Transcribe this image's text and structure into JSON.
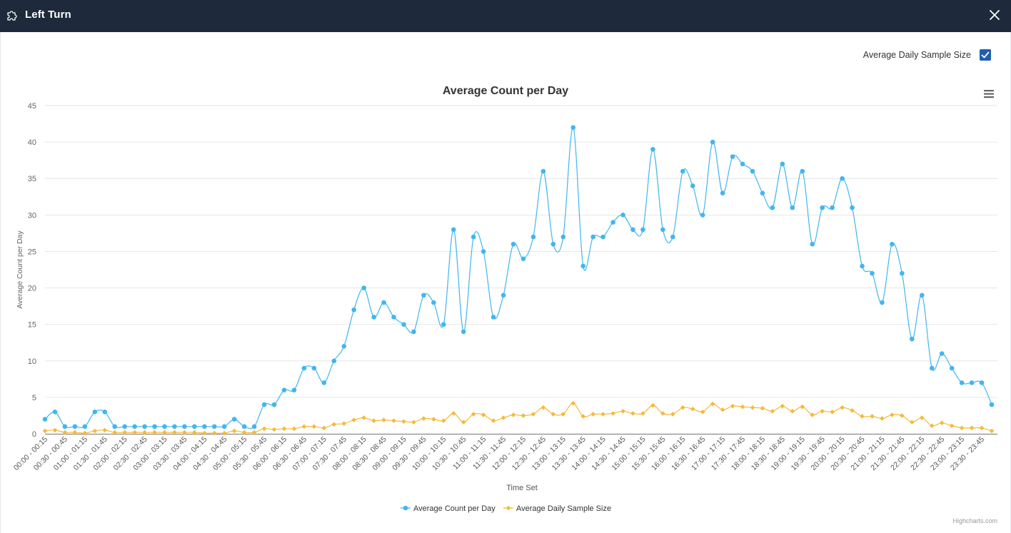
{
  "window": {
    "title": "Left Turn",
    "icon": "puzzle-icon",
    "close_icon": "close-icon"
  },
  "toggle": {
    "label": "Average Daily Sample Size",
    "checked": true
  },
  "credits": "Highcharts.com",
  "menu_icon": "hamburger-menu-icon",
  "colors": {
    "header": "#1e2a3b",
    "series1": "#41b6f0",
    "series2": "#f6b93b",
    "checkbox": "#1f5fb2"
  },
  "chart_data": {
    "type": "line",
    "title": "Average Count per Day",
    "xlabel": "Time Set",
    "ylabel": "Average Count per Day",
    "ylim": [
      0,
      45
    ],
    "yticks": [
      0,
      5,
      10,
      15,
      20,
      25,
      30,
      35,
      40,
      45
    ],
    "grid": true,
    "legend_position": "bottom-center",
    "tick_labels": [
      "00:00 - 00:15",
      "00:30 - 00:45",
      "01:00 - 01:15",
      "01:30 - 01:45",
      "02:00 - 02:15",
      "02:30 - 02:45",
      "03:00 - 03:15",
      "03:30 - 03:45",
      "04:00 - 04:15",
      "04:30 - 04:45",
      "05:00 - 05:15",
      "05:30 - 05:45",
      "06:00 - 06:15",
      "06:30 - 06:45",
      "07:00 - 07:15",
      "07:30 - 07:45",
      "08:00 - 08:15",
      "08:30 - 08:45",
      "09:00 - 09:15",
      "09:30 - 09:45",
      "10:00 - 10:15",
      "10:30 - 10:45",
      "11:00 - 11:15",
      "11:30 - 11:45",
      "12:00 - 12:15",
      "12:30 - 12:45",
      "13:00 - 13:15",
      "13:30 - 13:45",
      "14:00 - 14:15",
      "14:30 - 14:45",
      "15:00 - 15:15",
      "15:30 - 15:45",
      "16:00 - 16:15",
      "16:30 - 16:45",
      "17:00 - 17:15",
      "17:30 - 17:45",
      "18:00 - 18:15",
      "18:30 - 18:45",
      "19:00 - 19:15",
      "19:30 - 19:45",
      "20:00 - 20:15",
      "20:30 - 20:45",
      "21:00 - 21:15",
      "21:30 - 21:45",
      "22:00 - 22:15",
      "22:30 - 22:45",
      "23:00 - 23:15",
      "23:30 - 23:45"
    ],
    "series": [
      {
        "name": "Average Count per Day",
        "color": "#41b6f0",
        "marker": "circle",
        "values": [
          2,
          3,
          1,
          1,
          1,
          3,
          3,
          1,
          1,
          1,
          1,
          1,
          1,
          1,
          1,
          1,
          1,
          1,
          1,
          2,
          1,
          1,
          4,
          4,
          6,
          6,
          9,
          9,
          7,
          10,
          12,
          17,
          20,
          16,
          18,
          16,
          15,
          14,
          19,
          18,
          15,
          28,
          14,
          27,
          25,
          16,
          19,
          26,
          24,
          27,
          36,
          26,
          27,
          42,
          23,
          27,
          27,
          29,
          30,
          28,
          28,
          39,
          28,
          27,
          36,
          34,
          30,
          40,
          33,
          38,
          37,
          36,
          33,
          31,
          37,
          31,
          36,
          26,
          31,
          31,
          35,
          31,
          23,
          22,
          18,
          26,
          22,
          13,
          19,
          9,
          11,
          9,
          7,
          7,
          7,
          4
        ]
      },
      {
        "name": "Average Daily Sample Size",
        "color": "#f6b93b",
        "marker": "diamond",
        "values": [
          0.4,
          0.5,
          0.2,
          0.2,
          0.1,
          0.4,
          0.5,
          0.2,
          0.2,
          0.2,
          0.2,
          0.2,
          0.2,
          0.2,
          0.2,
          0.2,
          0.1,
          0.1,
          0.1,
          0.4,
          0.2,
          0.2,
          0.7,
          0.6,
          0.7,
          0.7,
          1.0,
          1.0,
          0.8,
          1.3,
          1.4,
          1.9,
          2.2,
          1.8,
          1.9,
          1.8,
          1.7,
          1.6,
          2.1,
          2.0,
          1.8,
          2.8,
          1.6,
          2.7,
          2.6,
          1.8,
          2.2,
          2.6,
          2.5,
          2.7,
          3.6,
          2.7,
          2.7,
          4.2,
          2.4,
          2.7,
          2.7,
          2.8,
          3.1,
          2.8,
          2.8,
          3.9,
          2.8,
          2.7,
          3.6,
          3.4,
          3.0,
          4.1,
          3.3,
          3.8,
          3.7,
          3.6,
          3.5,
          3.1,
          3.8,
          3.1,
          3.7,
          2.6,
          3.1,
          3.0,
          3.6,
          3.2,
          2.4,
          2.4,
          2.1,
          2.6,
          2.5,
          1.6,
          2.2,
          1.1,
          1.5,
          1.1,
          0.8,
          0.8,
          0.8,
          0.4
        ]
      }
    ]
  }
}
